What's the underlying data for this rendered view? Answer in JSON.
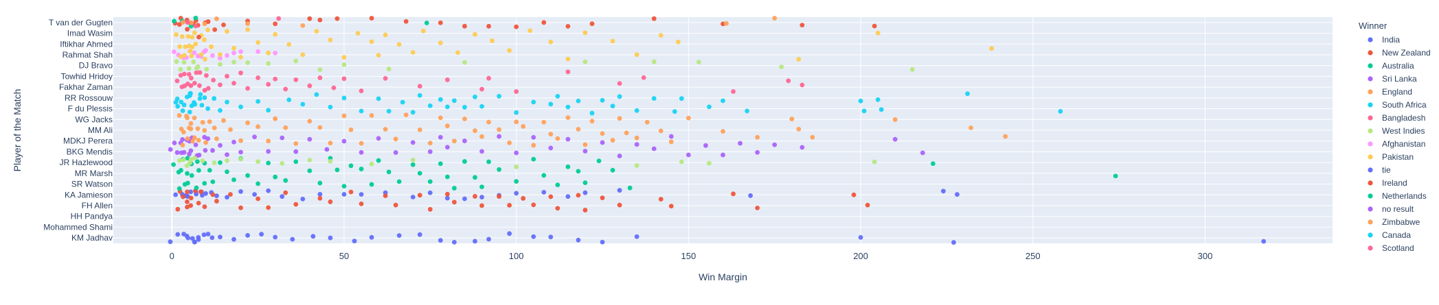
{
  "chart_data": {
    "type": "scatter",
    "title": "",
    "xlabel": "Win Margin",
    "ylabel": "Player of the Match",
    "xlim": [
      -17,
      337
    ],
    "x_ticks": [
      0,
      50,
      100,
      150,
      200,
      250,
      300
    ],
    "grid": true,
    "legend_title": "Winner",
    "legend_placement": "right",
    "players": [
      "T van der Gugten",
      "Imad Wasim",
      "Iftikhar Ahmed",
      "Rahmat Shah",
      "DJ Bravo",
      "Towhid Hridoy",
      "Fakhar Zaman",
      "RR Rossouw",
      "F du Plessis",
      "WG Jacks",
      "MM Ali",
      "MDKJ Perera",
      "BKG Mendis",
      "JR Hazlewood",
      "MR Marsh",
      "SR Watson",
      "KA Jamieson",
      "FH Allen",
      "HH Pandya",
      "Mohammed Shami",
      "KM Jadhav"
    ],
    "series": [
      {
        "name": "India",
        "color": "#636efa",
        "rows": [
          16,
          20
        ],
        "x": [
          1,
          2,
          3,
          3,
          4,
          4,
          5,
          5,
          5,
          6,
          6,
          6,
          7,
          7,
          7,
          8,
          8,
          8,
          9,
          9,
          10,
          10,
          11,
          12,
          13,
          14,
          16,
          18,
          20,
          22,
          24,
          26,
          28,
          30,
          32,
          35,
          38,
          41,
          43,
          46,
          50,
          53,
          55,
          58,
          62,
          66,
          70,
          72,
          75,
          78,
          80,
          82,
          85,
          88,
          90,
          92,
          95,
          98,
          100,
          105,
          108,
          110,
          115,
          118,
          120,
          125,
          130,
          135,
          168,
          200,
          224,
          227,
          228,
          317
        ]
      },
      {
        "name": "New Zealand",
        "color": "#EF553B",
        "rows": [
          0,
          16,
          17
        ],
        "x": [
          1,
          2,
          2,
          3,
          3,
          4,
          4,
          5,
          5,
          5,
          6,
          6,
          7,
          7,
          8,
          8,
          9,
          10,
          11,
          12,
          13,
          15,
          17,
          20,
          22,
          25,
          28,
          30,
          33,
          36,
          40,
          43,
          46,
          48,
          52,
          55,
          58,
          62,
          65,
          68,
          72,
          75,
          78,
          80,
          82,
          85,
          88,
          90,
          92,
          95,
          98,
          100,
          102,
          105,
          108,
          110,
          112,
          115,
          118,
          120,
          122,
          125,
          130,
          140,
          142,
          145,
          160,
          163,
          170,
          183,
          198,
          202,
          204
        ]
      },
      {
        "name": "Australia",
        "color": "#00cc96",
        "rows": [
          13,
          14,
          15
        ],
        "x": [
          1,
          2,
          2,
          3,
          3,
          4,
          4,
          5,
          5,
          6,
          6,
          7,
          7,
          8,
          9,
          10,
          11,
          12,
          14,
          16,
          18,
          20,
          22,
          25,
          28,
          30,
          33,
          36,
          40,
          43,
          46,
          48,
          50,
          52,
          55,
          58,
          60,
          63,
          66,
          70,
          72,
          75,
          78,
          80,
          82,
          85,
          88,
          90,
          92,
          95,
          100,
          105,
          108,
          112,
          115,
          118,
          120,
          124,
          128,
          133,
          221,
          274
        ]
      },
      {
        "name": "Sri Lanka",
        "color": "#ab63fa",
        "rows": [
          11,
          12
        ],
        "x": [
          1,
          2,
          2,
          3,
          3,
          4,
          4,
          5,
          5,
          6,
          6,
          7,
          7,
          8,
          9,
          10,
          11,
          12,
          14,
          16,
          18,
          20,
          24,
          28,
          32,
          36,
          40,
          45,
          50,
          55,
          60,
          65,
          70,
          75,
          78,
          80,
          85,
          90,
          95,
          100,
          105,
          110,
          115,
          120,
          125,
          130,
          135,
          140,
          145,
          150,
          155,
          160,
          165,
          170,
          175,
          183,
          210,
          218
        ]
      },
      {
        "name": "England",
        "color": "#FFA15A",
        "rows": [
          9,
          10,
          11
        ],
        "x": [
          2,
          3,
          3,
          4,
          4,
          5,
          5,
          5,
          6,
          6,
          6,
          7,
          7,
          8,
          8,
          9,
          9,
          10,
          11,
          12,
          13,
          15,
          17,
          20,
          22,
          25,
          28,
          30,
          33,
          36,
          40,
          43,
          46,
          50,
          52,
          55,
          58,
          62,
          65,
          68,
          72,
          75,
          78,
          80,
          82,
          85,
          88,
          90,
          92,
          95,
          98,
          100,
          102,
          105,
          108,
          110,
          112,
          115,
          118,
          120,
          122,
          125,
          128,
          130,
          132,
          135,
          138,
          142,
          145,
          150,
          160,
          170,
          180,
          182,
          186,
          210,
          232,
          242
        ]
      },
      {
        "name": "South Africa",
        "color": "#19d3f3",
        "rows": [
          7,
          8
        ],
        "x": [
          1,
          2,
          3,
          3,
          4,
          4,
          5,
          5,
          6,
          6,
          7,
          7,
          8,
          9,
          10,
          11,
          12,
          14,
          16,
          20,
          25,
          28,
          34,
          38,
          42,
          46,
          50,
          55,
          60,
          63,
          67,
          70,
          72,
          75,
          78,
          80,
          82,
          85,
          88,
          90,
          95,
          100,
          105,
          110,
          112,
          115,
          118,
          122,
          125,
          128,
          130,
          135,
          140,
          146,
          148,
          156,
          160,
          167,
          200,
          201,
          205,
          206,
          231,
          258
        ]
      },
      {
        "name": "Bangladesh",
        "color": "#FF6692",
        "rows": [
          5,
          6
        ],
        "x": [
          2,
          3,
          3,
          4,
          4,
          5,
          5,
          6,
          6,
          7,
          7,
          8,
          8,
          9,
          10,
          11,
          12,
          14,
          16,
          18,
          20,
          22,
          25,
          28,
          30,
          33,
          36,
          40,
          43,
          47,
          50,
          55,
          62,
          72,
          80,
          90,
          92,
          100,
          115,
          130,
          137,
          163,
          179,
          183
        ]
      },
      {
        "name": "West Indies",
        "color": "#B6E880",
        "rows": [
          4,
          13
        ],
        "x": [
          1,
          2,
          3,
          3,
          4,
          4,
          5,
          5,
          6,
          6,
          7,
          7,
          8,
          9,
          10,
          12,
          14,
          16,
          18,
          20,
          22,
          25,
          28,
          32,
          36,
          40,
          43,
          46,
          50,
          58,
          63,
          70,
          85,
          100,
          120,
          135,
          140,
          148,
          153,
          156,
          177,
          204,
          215
        ]
      },
      {
        "name": "Afghanistan",
        "color": "#FF97FF",
        "rows": [
          3
        ],
        "x": [
          1,
          2,
          3,
          4,
          5,
          6,
          7,
          8,
          9,
          10,
          12,
          14,
          16,
          18,
          20,
          25,
          30
        ]
      },
      {
        "name": "Pakistan",
        "color": "#FECB52",
        "rows": [
          1,
          2,
          3
        ],
        "x": [
          1,
          2,
          3,
          3,
          4,
          4,
          5,
          5,
          5,
          6,
          6,
          6,
          7,
          7,
          8,
          8,
          9,
          10,
          11,
          12,
          14,
          16,
          18,
          20,
          22,
          25,
          28,
          30,
          34,
          38,
          42,
          46,
          50,
          54,
          58,
          60,
          62,
          66,
          70,
          73,
          78,
          83,
          88,
          93,
          98,
          104,
          110,
          115,
          120,
          128,
          135,
          142,
          147,
          182,
          205,
          238
        ]
      },
      {
        "name": "tie",
        "color": "#636efa",
        "rows": [
          20
        ],
        "x": [
          0
        ]
      },
      {
        "name": "Ireland",
        "color": "#EF553B",
        "rows": [
          0,
          1
        ],
        "x": [
          2,
          4,
          6,
          8,
          10,
          12,
          43
        ]
      },
      {
        "name": "Netherlands",
        "color": "#00cc96",
        "rows": [
          0
        ],
        "x": [
          1,
          3,
          5,
          7,
          74
        ]
      },
      {
        "name": "no result",
        "color": "#ab63fa",
        "rows": [
          12
        ],
        "x": [
          0
        ]
      },
      {
        "name": "Zimbabwe",
        "color": "#FFA15A",
        "rows": [
          0
        ],
        "x": [
          3,
          6,
          9,
          13,
          22,
          38,
          161,
          175
        ]
      },
      {
        "name": "Canada",
        "color": "#19d3f3",
        "rows": [
          7
        ],
        "x": [
          2,
          5,
          8
        ]
      },
      {
        "name": "Scotland",
        "color": "#FF6692",
        "rows": [
          0
        ],
        "x": [
          4,
          7,
          31
        ]
      }
    ]
  }
}
